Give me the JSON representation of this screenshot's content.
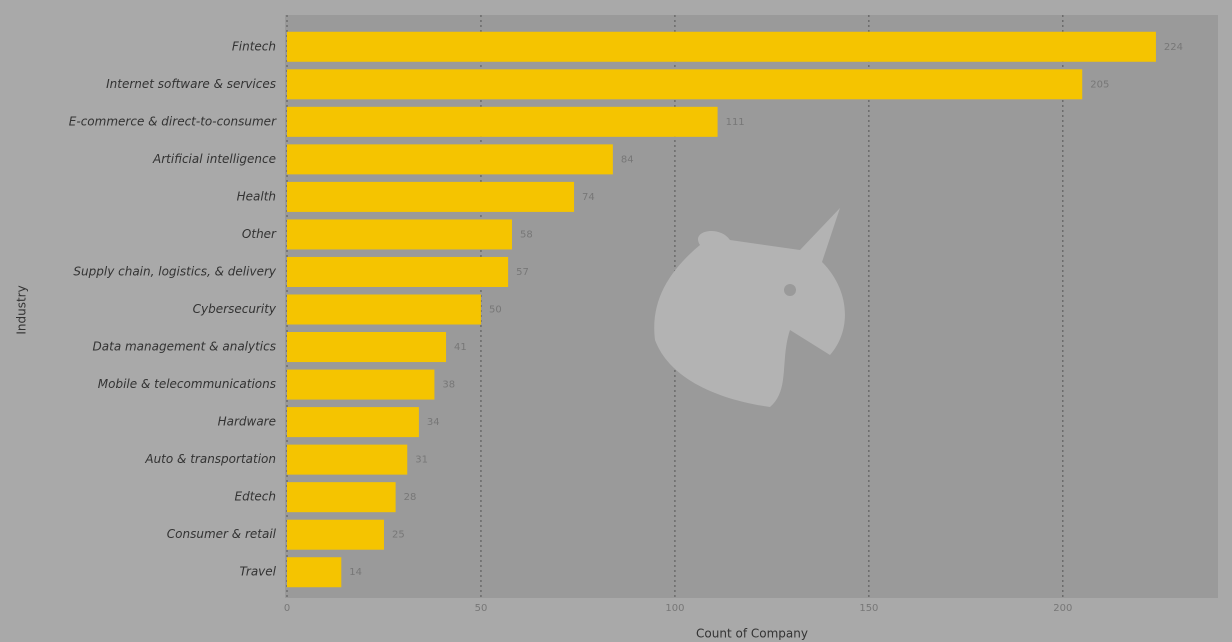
{
  "chart_data": {
    "type": "bar",
    "orientation": "horizontal",
    "x_label": "Count of Company",
    "y_label": "Industry",
    "categories": [
      "Fintech",
      "Internet software & services",
      "E-commerce & direct-to-consumer",
      "Artificial intelligence",
      "Health",
      "Other",
      "Supply chain, logistics, & delivery",
      "Cybersecurity",
      "Data management & analytics",
      "Mobile & telecommunications",
      "Hardware",
      "Auto & transportation",
      "Edtech",
      "Consumer & retail",
      "Travel"
    ],
    "values": [
      224,
      205,
      111,
      84,
      74,
      58,
      57,
      50,
      41,
      38,
      34,
      31,
      28,
      25,
      14
    ],
    "color": "#f5c400",
    "xlim": [
      0,
      240
    ],
    "xticks": [
      0,
      50,
      100,
      150,
      200
    ],
    "grid": true
  }
}
